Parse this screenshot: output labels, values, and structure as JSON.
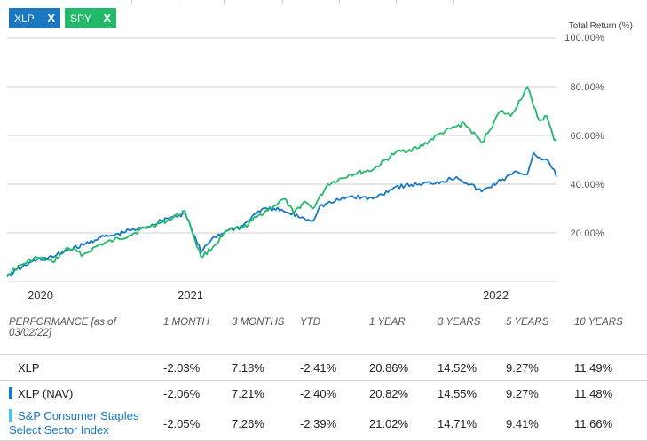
{
  "chips": [
    {
      "label": "XLP",
      "close": "X",
      "color": "#1a78c2"
    },
    {
      "label": "SPY",
      "close": "X",
      "color": "#23b96b"
    }
  ],
  "chart": {
    "axis_title": "Total Return (%)",
    "y_ticks": [
      "100.00%",
      "80.00%",
      "60.00%",
      "40.00%",
      "20.00%"
    ],
    "x_ticks": [
      "2020",
      "2021",
      "2022"
    ]
  },
  "chart_data": {
    "type": "line",
    "ylabel": "Total Return (%)",
    "ylim": [
      0,
      100
    ],
    "x_range": [
      "2019-03-02",
      "2022-03-02"
    ],
    "grid": true,
    "series": [
      {
        "name": "SPY",
        "color": "#23b96b",
        "points": [
          [
            "2019-03-02",
            3
          ],
          [
            "2019-04-01",
            7
          ],
          [
            "2019-05-01",
            10
          ],
          [
            "2019-06-01",
            8
          ],
          [
            "2019-07-01",
            14
          ],
          [
            "2019-08-01",
            11
          ],
          [
            "2019-09-01",
            15
          ],
          [
            "2019-10-01",
            17
          ],
          [
            "2019-11-01",
            19
          ],
          [
            "2019-12-01",
            22
          ],
          [
            "2020-01-15",
            25
          ],
          [
            "2020-02-20",
            29
          ],
          [
            "2020-03-23",
            10
          ],
          [
            "2020-04-15",
            14
          ],
          [
            "2020-05-15",
            21
          ],
          [
            "2020-06-15",
            22
          ],
          [
            "2020-07-15",
            27
          ],
          [
            "2020-08-15",
            31
          ],
          [
            "2020-09-05",
            34
          ],
          [
            "2020-09-24",
            28
          ],
          [
            "2020-10-15",
            33
          ],
          [
            "2020-11-01",
            30
          ],
          [
            "2020-12-01",
            40
          ],
          [
            "2021-01-15",
            44
          ],
          [
            "2021-03-01",
            46
          ],
          [
            "2021-04-15",
            53
          ],
          [
            "2021-06-01",
            55
          ],
          [
            "2021-07-15",
            61
          ],
          [
            "2021-08-30",
            65
          ],
          [
            "2021-10-04",
            57
          ],
          [
            "2021-11-10",
            70
          ],
          [
            "2021-12-01",
            68
          ],
          [
            "2022-01-03",
            80
          ],
          [
            "2022-01-15",
            72
          ],
          [
            "2022-01-27",
            66
          ],
          [
            "2022-02-10",
            68
          ],
          [
            "2022-02-24",
            59
          ],
          [
            "2022-03-02",
            58
          ]
        ]
      },
      {
        "name": "XLP",
        "color": "#1a78c2",
        "points": [
          [
            "2019-03-02",
            2
          ],
          [
            "2019-04-01",
            6
          ],
          [
            "2019-05-01",
            9
          ],
          [
            "2019-06-01",
            10
          ],
          [
            "2019-07-01",
            13
          ],
          [
            "2019-08-01",
            15
          ],
          [
            "2019-09-01",
            18
          ],
          [
            "2019-10-01",
            19
          ],
          [
            "2019-11-01",
            21
          ],
          [
            "2019-12-01",
            22
          ],
          [
            "2020-01-15",
            26
          ],
          [
            "2020-02-20",
            28
          ],
          [
            "2020-03-23",
            12
          ],
          [
            "2020-04-15",
            18
          ],
          [
            "2020-05-15",
            21
          ],
          [
            "2020-06-15",
            23
          ],
          [
            "2020-07-15",
            29
          ],
          [
            "2020-08-15",
            30
          ],
          [
            "2020-09-15",
            28
          ],
          [
            "2020-10-15",
            26
          ],
          [
            "2020-11-01",
            25
          ],
          [
            "2020-11-15",
            31
          ],
          [
            "2020-12-15",
            33
          ],
          [
            "2021-01-15",
            35
          ],
          [
            "2021-03-01",
            34
          ],
          [
            "2021-04-15",
            39
          ],
          [
            "2021-06-01",
            40
          ],
          [
            "2021-07-15",
            41
          ],
          [
            "2021-08-15",
            43
          ],
          [
            "2021-10-04",
            37
          ],
          [
            "2021-11-15",
            42
          ],
          [
            "2021-12-15",
            45
          ],
          [
            "2022-01-03",
            44
          ],
          [
            "2022-01-15",
            53
          ],
          [
            "2022-02-01",
            50
          ],
          [
            "2022-02-15",
            49
          ],
          [
            "2022-02-25",
            46
          ],
          [
            "2022-03-02",
            43
          ]
        ]
      }
    ]
  },
  "performance": {
    "headers": [
      "PERFORMANCE [as of 03/02/22]",
      "1 MONTH",
      "3 MONTHS",
      "YTD",
      "1 YEAR",
      "3 YEARS",
      "5 YEARS",
      "10 YEARS"
    ],
    "rows": [
      {
        "name": "XLP",
        "bar_color": "",
        "values": [
          "-2.03%",
          "7.18%",
          "-2.41%",
          "20.86%",
          "14.52%",
          "9.27%",
          "11.49%"
        ]
      },
      {
        "name": "XLP (NAV)",
        "bar_color": "#1a78c2",
        "values": [
          "-2.06%",
          "7.21%",
          "-2.40%",
          "20.82%",
          "14.55%",
          "9.27%",
          "11.48%"
        ]
      },
      {
        "name": "S&P Consumer Staples Select Sector Index",
        "bar_color": "#4ec3e8",
        "values": [
          "-2.05%",
          "7.26%",
          "-2.39%",
          "21.02%",
          "14.71%",
          "9.41%",
          "11.66%"
        ]
      }
    ]
  }
}
